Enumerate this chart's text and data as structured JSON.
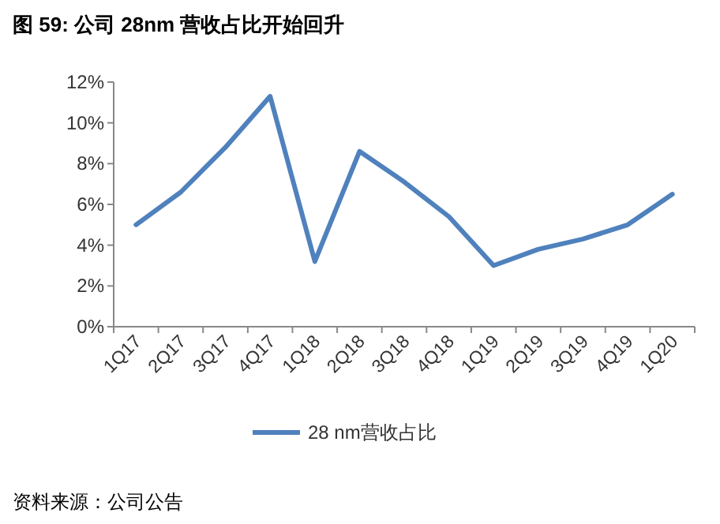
{
  "chart_data": {
    "type": "line",
    "title": "图 59:  公司 28nm 营收占比开始回升",
    "categories": [
      "1Q17",
      "2Q17",
      "3Q17",
      "4Q17",
      "1Q18",
      "2Q18",
      "3Q18",
      "4Q18",
      "1Q19",
      "2Q19",
      "3Q19",
      "4Q19",
      "1Q20"
    ],
    "series": [
      {
        "name": "28 nm营收占比",
        "color": "#4f81bd",
        "values": [
          5.0,
          6.6,
          8.8,
          11.3,
          3.2,
          8.6,
          7.1,
          5.4,
          3.0,
          3.8,
          4.3,
          5.0,
          6.5
        ]
      }
    ],
    "ylim": [
      0,
      12
    ],
    "yticks": [
      {
        "value": 0,
        "label": "0%"
      },
      {
        "value": 2,
        "label": "2%"
      },
      {
        "value": 4,
        "label": "4%"
      },
      {
        "value": 6,
        "label": "6%"
      },
      {
        "value": 8,
        "label": "8%"
      },
      {
        "value": 10,
        "label": "10%"
      },
      {
        "value": 12,
        "label": "12%"
      }
    ],
    "legend": "bottom",
    "grid": false,
    "annotations": [
      "资料来源：公司公告"
    ]
  }
}
